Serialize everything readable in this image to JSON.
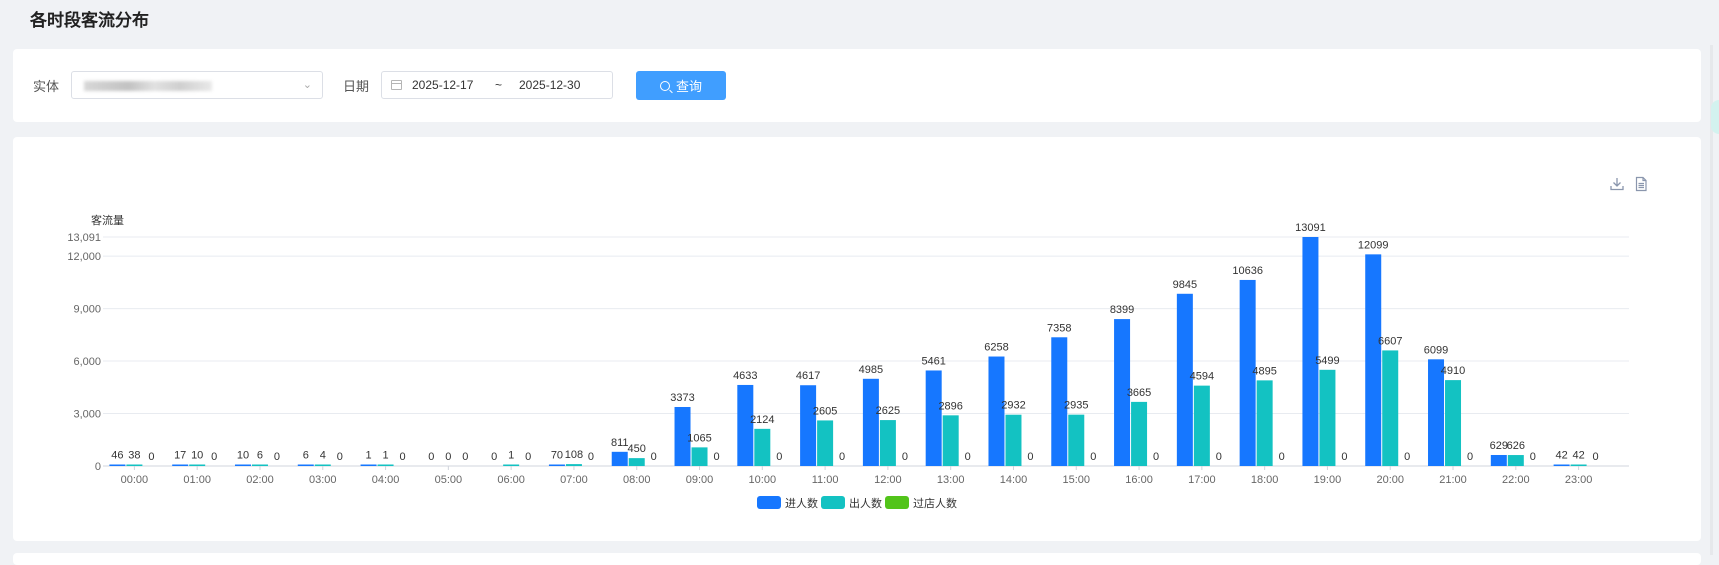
{
  "page": {
    "title": "各时段客流分布"
  },
  "filters": {
    "entity_label": "实体",
    "entity_value": "",
    "date_label": "日期",
    "date_start": "2025-12-17",
    "date_separator": "~",
    "date_end": "2025-12-30",
    "query_label": "查询"
  },
  "icons": {
    "download": "download-icon",
    "data_view": "document-icon",
    "search": "search-icon",
    "calendar": "calendar-icon"
  },
  "chart_data": {
    "type": "bar",
    "ylabel": "客流量",
    "categories": [
      "00:00",
      "01:00",
      "02:00",
      "03:00",
      "04:00",
      "05:00",
      "06:00",
      "07:00",
      "08:00",
      "09:00",
      "10:00",
      "11:00",
      "12:00",
      "13:00",
      "14:00",
      "15:00",
      "16:00",
      "17:00",
      "18:00",
      "19:00",
      "20:00",
      "21:00",
      "22:00",
      "23:00"
    ],
    "series": [
      {
        "name": "进人数",
        "color": "#1677ff",
        "values": [
          46,
          17,
          10,
          6,
          1,
          0,
          0,
          70,
          811,
          3373,
          4633,
          4617,
          4985,
          5461,
          6258,
          7358,
          8399,
          9845,
          10636,
          13091,
          12099,
          6099,
          629,
          42
        ]
      },
      {
        "name": "出人数",
        "color": "#13c2c2",
        "values": [
          38,
          10,
          6,
          4,
          1,
          0,
          1,
          108,
          450,
          1065,
          2124,
          2605,
          2625,
          2896,
          2932,
          2935,
          3665,
          4594,
          4895,
          5499,
          6607,
          4910,
          626,
          42
        ]
      },
      {
        "name": "过店人数",
        "color": "#52c41a",
        "values": [
          0,
          0,
          0,
          0,
          0,
          0,
          0,
          0,
          0,
          0,
          0,
          0,
          0,
          0,
          0,
          0,
          0,
          0,
          0,
          0,
          0,
          0,
          0,
          0
        ]
      }
    ],
    "yticks": [
      "0",
      "3,000",
      "6,000",
      "9,000",
      "12,000",
      "13,091"
    ],
    "ylim": [
      0,
      13091
    ],
    "grid": true,
    "legend_position": "bottom"
  }
}
